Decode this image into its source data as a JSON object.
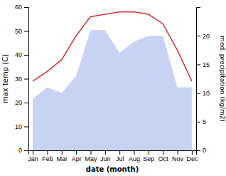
{
  "chart_data": {
    "type": "line",
    "categories": [
      "Jan",
      "Feb",
      "Mar",
      "Apr",
      "May",
      "Jun",
      "Jul",
      "Aug",
      "Sep",
      "Oct",
      "Nov",
      "Dec"
    ],
    "series": [
      {
        "type": "area",
        "color": "#aabbee",
        "axis": "y2",
        "values": [
          9,
          11,
          10,
          13,
          21,
          21,
          17,
          19,
          20,
          20,
          11,
          11
        ]
      },
      {
        "type": "line",
        "color": "#cc3333",
        "values": [
          29,
          33,
          38,
          48,
          56,
          57,
          58,
          58,
          57,
          53,
          42,
          29
        ]
      }
    ],
    "x_label": "date (month)",
    "y_label": "max temp (C)",
    "y2_label": "med. precipitation (kg/m2)",
    "ylim": [
      0,
      60
    ],
    "yticks": [
      0,
      10,
      20,
      30,
      40,
      50,
      60
    ],
    "y2lim": [
      0,
      25
    ],
    "y2ticks": [
      0,
      5,
      10,
      15,
      20
    ],
    "grid": false
  }
}
